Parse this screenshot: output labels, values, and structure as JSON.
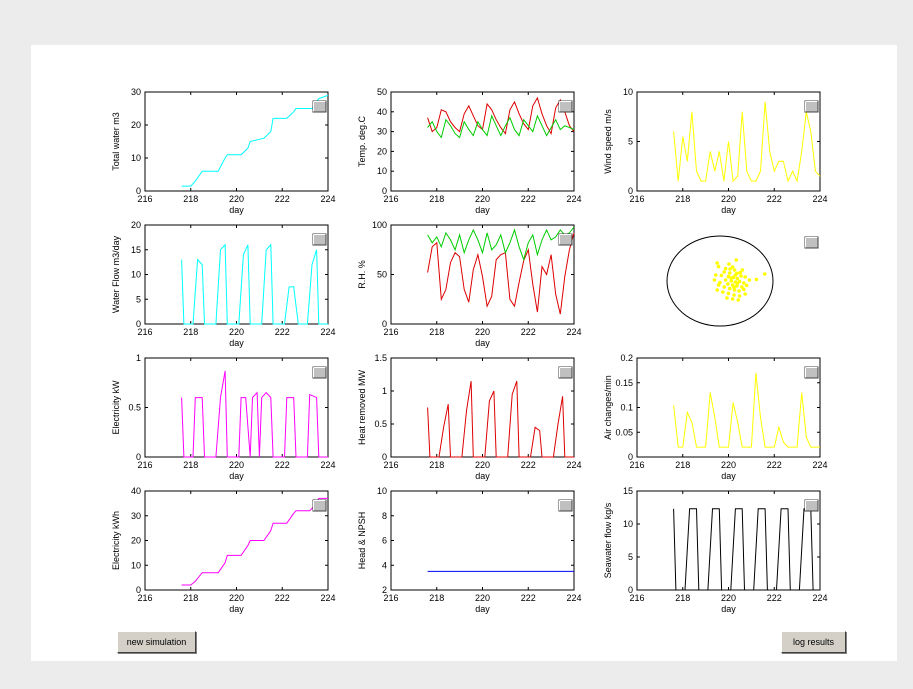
{
  "buttons": {
    "new_simulation": "new simulation",
    "log_results": "log results"
  },
  "x_axis": {
    "label": "day",
    "lim": [
      216,
      224
    ],
    "ticks": [
      "216",
      "218",
      "220",
      "222",
      "224"
    ]
  },
  "colors": {
    "cyan": "#00ffff",
    "red": "#dd0000",
    "green": "#00cc00",
    "yellow": "#ffff00",
    "magenta": "#ff00ff",
    "blue": "#0000ff",
    "black": "#000000"
  },
  "chart_data": [
    {
      "id": "total-water",
      "type": "line",
      "ylabel": "Total water m3",
      "ylim": [
        0,
        30
      ],
      "yticks": [
        "0",
        "10",
        "20",
        "30"
      ],
      "series": [
        {
          "color": "#00ffff",
          "x": [
            217.6,
            218.0,
            218.2,
            218.5,
            219.2,
            219.5,
            219.6,
            220.2,
            220.5,
            220.6,
            221.2,
            221.5,
            221.6,
            222.2,
            222.5,
            222.6,
            223.3,
            223.6,
            224.0
          ],
          "y": [
            1.5,
            1.5,
            3,
            6,
            6,
            10,
            11,
            11,
            13,
            15,
            16,
            18,
            22,
            22,
            24,
            25,
            25,
            28,
            29
          ]
        }
      ]
    },
    {
      "id": "temperature",
      "type": "line",
      "ylabel": "Temp. deg.C",
      "ylim": [
        0,
        50
      ],
      "yticks": [
        "0",
        "10",
        "20",
        "30",
        "40",
        "50"
      ],
      "series": [
        {
          "color": "#dd0000",
          "x": [
            217.6,
            217.8,
            218.0,
            218.2,
            218.4,
            218.6,
            218.8,
            219.0,
            219.2,
            219.4,
            219.6,
            219.8,
            220.0,
            220.2,
            220.4,
            220.6,
            220.8,
            221.0,
            221.2,
            221.4,
            221.6,
            221.8,
            222.0,
            222.2,
            222.4,
            222.6,
            222.8,
            223.0,
            223.2,
            223.4,
            223.6,
            223.8,
            224.0
          ],
          "y": [
            37,
            30,
            32,
            41,
            40,
            35,
            32,
            30,
            39,
            43,
            38,
            33,
            31,
            44,
            41,
            36,
            32,
            29,
            41,
            45,
            39,
            34,
            31,
            43,
            47,
            39,
            33,
            29,
            42,
            46,
            40,
            33,
            30
          ]
        },
        {
          "color": "#00cc00",
          "x": [
            217.6,
            217.8,
            218.0,
            218.2,
            218.4,
            218.6,
            218.8,
            219.0,
            219.2,
            219.4,
            219.6,
            219.8,
            220.0,
            220.2,
            220.4,
            220.6,
            220.8,
            221.0,
            221.2,
            221.4,
            221.6,
            221.8,
            222.0,
            222.2,
            222.4,
            222.6,
            222.8,
            223.0,
            223.2,
            223.4,
            223.6,
            223.8,
            224.0
          ],
          "y": [
            32,
            35,
            30,
            27,
            36,
            33,
            29,
            27,
            35,
            31,
            28,
            35,
            31,
            28,
            38,
            33,
            28,
            33,
            37,
            31,
            28,
            36,
            33,
            30,
            38,
            33,
            28,
            32,
            36,
            31,
            33,
            32,
            31
          ]
        }
      ]
    },
    {
      "id": "wind-speed",
      "type": "line",
      "ylabel": "Wind speed m/s",
      "ylim": [
        0,
        10
      ],
      "yticks": [
        "0",
        "5",
        "10"
      ],
      "series": [
        {
          "color": "#ffff00",
          "x": [
            217.6,
            217.8,
            218.0,
            218.2,
            218.4,
            218.6,
            218.8,
            219.0,
            219.2,
            219.4,
            219.6,
            219.8,
            220.0,
            220.2,
            220.4,
            220.6,
            220.8,
            221.0,
            221.2,
            221.4,
            221.6,
            221.8,
            222.0,
            222.2,
            222.4,
            222.6,
            222.8,
            223.0,
            223.2,
            223.4,
            223.6,
            223.8,
            224.0
          ],
          "y": [
            6,
            1,
            5.5,
            3,
            8,
            2,
            1,
            1,
            4,
            2,
            4,
            1,
            5,
            1,
            1.5,
            8,
            2,
            1,
            1,
            2,
            9,
            4,
            2,
            3,
            3,
            1,
            2,
            1,
            4,
            8,
            6,
            2,
            1.5
          ]
        }
      ]
    },
    {
      "id": "water-flow",
      "type": "line",
      "ylabel": "Water Flow m3/day",
      "ylim": [
        0,
        20
      ],
      "yticks": [
        "0",
        "5",
        "10",
        "15",
        "20"
      ],
      "series": [
        {
          "color": "#00ffff",
          "x": [
            217.6,
            217.7,
            218.1,
            218.3,
            218.5,
            218.6,
            219.1,
            219.3,
            219.5,
            219.6,
            220.1,
            220.3,
            220.5,
            220.6,
            221.1,
            221.3,
            221.5,
            221.6,
            222.1,
            222.3,
            222.5,
            222.7,
            223.1,
            223.3,
            223.5,
            223.6,
            224.0
          ],
          "y": [
            13,
            0,
            0,
            13,
            12,
            0,
            0,
            15,
            16,
            0,
            0,
            14,
            16,
            0,
            0,
            15,
            16,
            0,
            0,
            7.5,
            7.5,
            0,
            0,
            12,
            15,
            0,
            0
          ]
        }
      ]
    },
    {
      "id": "relative-humidity",
      "type": "line",
      "ylabel": "R.H.  %",
      "ylim": [
        0,
        100
      ],
      "yticks": [
        "0",
        "50",
        "100"
      ],
      "series": [
        {
          "color": "#dd0000",
          "x": [
            217.6,
            217.8,
            218.0,
            218.2,
            218.4,
            218.6,
            218.8,
            219.0,
            219.2,
            219.4,
            219.6,
            219.8,
            220.0,
            220.2,
            220.4,
            220.6,
            220.8,
            221.0,
            221.2,
            221.4,
            221.6,
            221.8,
            222.0,
            222.2,
            222.4,
            222.6,
            222.8,
            223.0,
            223.2,
            223.4,
            223.6,
            223.8,
            224.0
          ],
          "y": [
            52,
            78,
            82,
            25,
            35,
            62,
            72,
            68,
            35,
            22,
            55,
            70,
            48,
            18,
            28,
            65,
            70,
            72,
            25,
            18,
            42,
            64,
            75,
            40,
            12,
            58,
            50,
            70,
            30,
            10,
            48,
            75,
            92
          ]
        },
        {
          "color": "#00cc00",
          "x": [
            217.6,
            217.8,
            218.0,
            218.2,
            218.4,
            218.6,
            218.8,
            219.0,
            219.2,
            219.4,
            219.6,
            219.8,
            220.0,
            220.2,
            220.4,
            220.6,
            220.8,
            221.0,
            221.2,
            221.4,
            221.6,
            221.8,
            222.0,
            222.2,
            222.4,
            222.6,
            222.8,
            223.0,
            223.2,
            223.4,
            223.6,
            223.8,
            224.0
          ],
          "y": [
            90,
            82,
            88,
            78,
            92,
            85,
            75,
            90,
            72,
            85,
            95,
            85,
            72,
            92,
            75,
            80,
            90,
            72,
            82,
            95,
            78,
            65,
            82,
            90,
            70,
            85,
            95,
            85,
            88,
            95,
            90,
            92,
            98
          ]
        }
      ]
    },
    {
      "id": "electricity-kw",
      "type": "line",
      "ylabel": "Electricity kW",
      "ylim": [
        0,
        1
      ],
      "yticks": [
        "0",
        "0.5",
        "1"
      ],
      "series": [
        {
          "color": "#ff00ff",
          "x": [
            217.6,
            217.7,
            218.1,
            218.2,
            218.5,
            218.6,
            219.1,
            219.3,
            219.5,
            219.6,
            220.1,
            220.2,
            220.4,
            220.6,
            220.7,
            220.9,
            221.0,
            221.1,
            221.3,
            221.5,
            221.6,
            222.1,
            222.2,
            222.5,
            222.6,
            223.1,
            223.2,
            223.5,
            223.6,
            224.0
          ],
          "y": [
            0.6,
            0,
            0,
            0.6,
            0.6,
            0,
            0,
            0.6,
            0.87,
            0,
            0,
            0.6,
            0.6,
            0,
            0.6,
            0.65,
            0,
            0.6,
            0.65,
            0.6,
            0,
            0,
            0.6,
            0.6,
            0,
            0,
            0.63,
            0.6,
            0,
            0
          ]
        }
      ]
    },
    {
      "id": "heat-removed",
      "type": "line",
      "ylabel": "Heat removed MW",
      "ylim": [
        0,
        1.5
      ],
      "yticks": [
        "0",
        "0.5",
        "1",
        "1.5"
      ],
      "series": [
        {
          "color": "#dd0000",
          "x": [
            217.6,
            217.7,
            218.1,
            218.3,
            218.5,
            218.6,
            219.1,
            219.3,
            219.5,
            219.6,
            220.1,
            220.3,
            220.5,
            220.6,
            221.1,
            221.3,
            221.5,
            221.6,
            222.1,
            222.3,
            222.5,
            222.6,
            223.1,
            223.3,
            223.5,
            223.6,
            224.0
          ],
          "y": [
            0.75,
            0,
            0,
            0.45,
            0.8,
            0,
            0,
            0.7,
            1.15,
            0,
            0,
            0.85,
            1.0,
            0,
            0,
            0.95,
            1.15,
            0,
            0,
            0.45,
            0.4,
            0,
            0,
            0.5,
            0.92,
            0,
            0
          ]
        }
      ]
    },
    {
      "id": "air-changes",
      "type": "line",
      "ylabel": "Air changes/min",
      "ylim": [
        0,
        0.2
      ],
      "yticks": [
        "0",
        "0.05",
        "0.1",
        "0.15",
        "0.2"
      ],
      "series": [
        {
          "color": "#ffff00",
          "x": [
            217.6,
            217.8,
            218.0,
            218.2,
            218.4,
            218.6,
            219.0,
            219.2,
            219.4,
            219.6,
            220.0,
            220.2,
            220.4,
            220.6,
            221.0,
            221.2,
            221.4,
            221.6,
            222.0,
            222.2,
            222.4,
            222.6,
            223.0,
            223.2,
            223.4,
            223.6,
            224.0
          ],
          "y": [
            0.105,
            0.02,
            0.02,
            0.09,
            0.07,
            0.02,
            0.02,
            0.13,
            0.08,
            0.02,
            0.02,
            0.11,
            0.07,
            0.02,
            0.02,
            0.17,
            0.08,
            0.02,
            0.02,
            0.06,
            0.03,
            0.02,
            0.02,
            0.13,
            0.04,
            0.02,
            0.02
          ]
        }
      ]
    },
    {
      "id": "electricity-kwh",
      "type": "line",
      "ylabel": "Electricity kWh",
      "ylim": [
        0,
        40
      ],
      "yticks": [
        "0",
        "10",
        "20",
        "30",
        "40"
      ],
      "series": [
        {
          "color": "#ff00ff",
          "x": [
            217.6,
            218.0,
            218.2,
            218.5,
            219.2,
            219.5,
            219.6,
            220.2,
            220.5,
            220.6,
            221.2,
            221.5,
            221.6,
            222.2,
            222.5,
            222.6,
            223.2,
            223.5,
            223.6,
            224.0
          ],
          "y": [
            2,
            2,
            3.5,
            7,
            7,
            11,
            14,
            14,
            18,
            20,
            20,
            24,
            27,
            27,
            31,
            32,
            32,
            35,
            37,
            37
          ]
        }
      ]
    },
    {
      "id": "head-npsh",
      "type": "line",
      "ylabel": "Head & NPSH",
      "ylim": [
        2,
        10
      ],
      "yticks": [
        "2",
        "4",
        "6",
        "8",
        "10"
      ],
      "series": [
        {
          "color": "#0000ff",
          "x": [
            217.6,
            224.0
          ],
          "y": [
            3.5,
            3.5
          ]
        }
      ]
    },
    {
      "id": "seawater-flow",
      "type": "line",
      "ylabel": "Seawater flow kg/s",
      "ylim": [
        0,
        15
      ],
      "yticks": [
        "0",
        "5",
        "10",
        "15"
      ],
      "series": [
        {
          "color": "#000000",
          "x": [
            217.6,
            217.7,
            218.1,
            218.3,
            218.6,
            218.7,
            219.1,
            219.3,
            219.6,
            219.7,
            220.1,
            220.3,
            220.6,
            220.7,
            221.1,
            221.3,
            221.6,
            221.7,
            222.1,
            222.3,
            222.6,
            222.7,
            223.1,
            223.3,
            223.6,
            223.7,
            224.0
          ],
          "y": [
            12.3,
            0,
            0,
            12.3,
            12.3,
            0,
            0,
            12.3,
            12.3,
            0,
            0,
            12.3,
            12.3,
            0,
            0,
            12.3,
            12.3,
            0,
            0,
            12.3,
            12.3,
            0,
            0,
            12.3,
            12.3,
            0,
            0
          ]
        }
      ]
    },
    {
      "id": "wind-scatter",
      "type": "scatter",
      "color": "#ffff00",
      "points": [
        [
          0.45,
          0.7
        ],
        [
          0.58,
          1.05
        ],
        [
          0.32,
          0.85
        ],
        [
          -0.1,
          0.9
        ],
        [
          -0.05,
          0.72
        ],
        [
          0.2,
          0.62
        ],
        [
          0.52,
          0.55
        ],
        [
          0.15,
          0.45
        ],
        [
          0.35,
          0.4
        ],
        [
          0.6,
          0.38
        ],
        [
          0.75,
          0.25
        ],
        [
          -0.15,
          0.3
        ],
        [
          0.05,
          0.28
        ],
        [
          0.3,
          0.22
        ],
        [
          0.48,
          0.18
        ],
        [
          0.62,
          0.12
        ],
        [
          0.9,
          0.2
        ],
        [
          1.05,
          0.05
        ],
        [
          1.3,
          0.08
        ],
        [
          0.2,
          0.05
        ],
        [
          0.4,
          0.0
        ],
        [
          0.55,
          -0.05
        ],
        [
          0.7,
          -0.02
        ],
        [
          0.85,
          -0.1
        ],
        [
          -0.2,
          0.05
        ],
        [
          0.0,
          -0.08
        ],
        [
          0.28,
          -0.15
        ],
        [
          0.45,
          -0.2
        ],
        [
          0.6,
          -0.25
        ],
        [
          0.78,
          -0.3
        ],
        [
          0.95,
          -0.22
        ],
        [
          0.15,
          -0.3
        ],
        [
          0.35,
          -0.38
        ],
        [
          0.52,
          -0.45
        ],
        [
          0.68,
          -0.5
        ],
        [
          0.85,
          -0.42
        ],
        [
          -0.1,
          -0.45
        ],
        [
          0.1,
          -0.55
        ],
        [
          0.3,
          -0.62
        ],
        [
          0.5,
          -0.7
        ],
        [
          0.7,
          -0.75
        ],
        [
          0.9,
          -0.65
        ],
        [
          0.45,
          -0.9
        ],
        [
          0.65,
          -0.95
        ],
        [
          0.25,
          -0.85
        ],
        [
          0.55,
          0.3
        ],
        [
          0.4,
          0.15
        ],
        [
          0.62,
          -0.12
        ],
        [
          0.72,
          0.42
        ],
        [
          0.5,
          -0.32
        ],
        [
          0.36,
          0.6
        ],
        [
          0.8,
          0.55
        ],
        [
          1.6,
          0.35
        ],
        [
          -0.05,
          -0.2
        ]
      ]
    }
  ]
}
